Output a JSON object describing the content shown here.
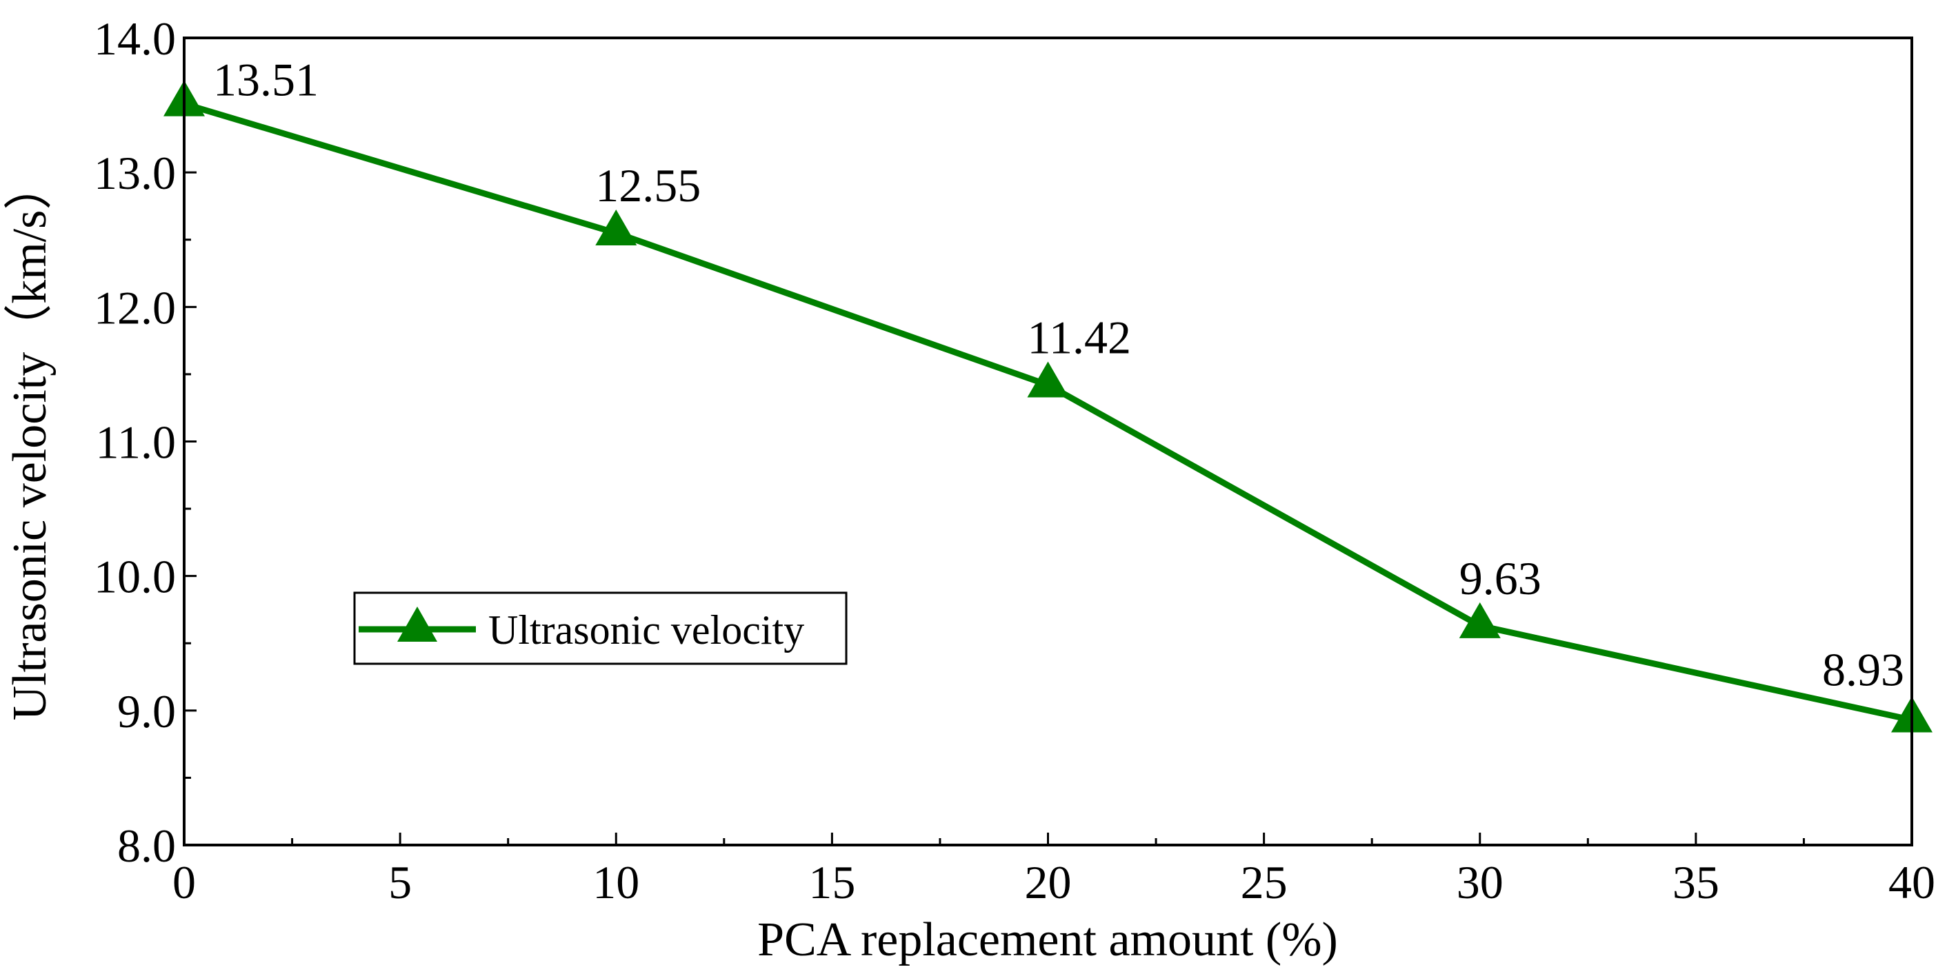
{
  "chart_data": {
    "type": "line",
    "title": "",
    "xlabel": "PCA replacement amount (%)",
    "ylabel": "Ultrasonic velocity（km/s）",
    "xlim": [
      0,
      40
    ],
    "ylim": [
      8.0,
      14.0
    ],
    "x_ticks": [
      "0",
      "5",
      "10",
      "15",
      "20",
      "25",
      "30",
      "35",
      "40"
    ],
    "x_tick_values": [
      0,
      5,
      10,
      15,
      20,
      25,
      30,
      35,
      40
    ],
    "y_ticks": [
      "8.0",
      "9.0",
      "10.0",
      "11.0",
      "12.0",
      "13.0",
      "14.0"
    ],
    "y_tick_values": [
      8.0,
      9.0,
      10.0,
      11.0,
      12.0,
      13.0,
      14.0
    ],
    "grid": false,
    "legend_position": "center-left",
    "series": [
      {
        "name": "Ultrasonic velocity",
        "color": "#008000",
        "marker": "triangle",
        "x": [
          0,
          10,
          20,
          30,
          40
        ],
        "values": [
          13.51,
          12.55,
          11.42,
          9.63,
          8.93
        ],
        "labels": [
          "13.51",
          "12.55",
          "11.42",
          "9.63",
          "8.93"
        ]
      }
    ]
  }
}
